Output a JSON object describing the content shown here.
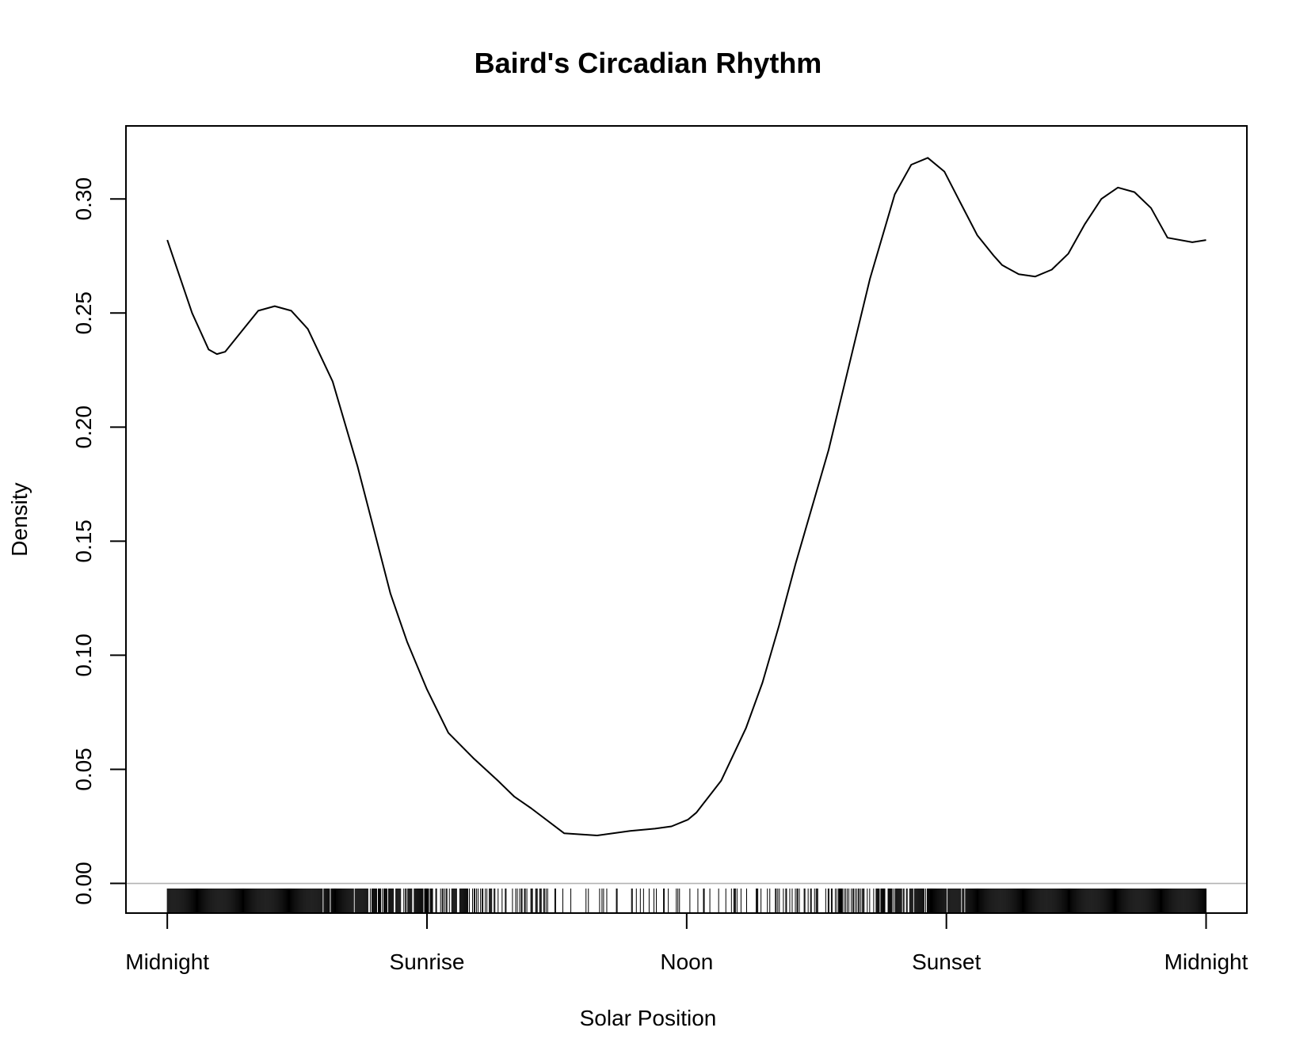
{
  "chart_data": {
    "type": "line",
    "title": "Baird's Circadian Rhythm",
    "xlabel": "Solar Position",
    "ylabel": "Density",
    "x_tick_labels": [
      "Midnight",
      "Sunrise",
      "Noon",
      "Sunset",
      "Midnight"
    ],
    "x_ticks": [
      0,
      1.5708,
      3.1416,
      4.7124,
      6.2832
    ],
    "xlim": [
      -0.25,
      6.53
    ],
    "ylim": [
      -0.013,
      0.332
    ],
    "y_ticks": [
      0.0,
      0.05,
      0.1,
      0.15,
      0.2,
      0.25,
      0.3
    ],
    "y_tick_labels": [
      "0.00",
      "0.05",
      "0.10",
      "0.15",
      "0.20",
      "0.25",
      "0.30"
    ],
    "reference_line": {
      "y": 0,
      "color": "#b3b3b3"
    },
    "grid": false,
    "series": [
      {
        "x": [
          0,
          0.15,
          0.25,
          0.3,
          0.35,
          0.45,
          0.55,
          0.65,
          0.75,
          0.85,
          1.0,
          1.15,
          1.25,
          1.35,
          1.45,
          1.5708,
          1.7,
          1.85,
          2.0,
          2.1,
          2.2,
          2.4,
          2.6,
          2.8,
          2.95,
          3.05,
          3.15,
          3.2,
          3.35,
          3.5,
          3.6,
          3.7,
          3.8,
          3.9,
          4.0,
          4.1,
          4.25,
          4.4,
          4.5,
          4.6,
          4.7,
          4.8,
          4.9,
          5.0,
          5.05,
          5.15,
          5.25,
          5.35,
          5.45,
          5.55,
          5.65,
          5.75,
          5.85,
          5.95,
          6.05,
          6.2,
          6.2832
        ],
        "y": [
          0.282,
          0.25,
          0.234,
          0.232,
          0.233,
          0.242,
          0.251,
          0.253,
          0.251,
          0.243,
          0.22,
          0.183,
          0.155,
          0.127,
          0.106,
          0.085,
          0.066,
          0.055,
          0.045,
          0.038,
          0.033,
          0.022,
          0.021,
          0.023,
          0.024,
          0.025,
          0.028,
          0.031,
          0.045,
          0.068,
          0.088,
          0.113,
          0.14,
          0.165,
          0.19,
          0.22,
          0.265,
          0.302,
          0.315,
          0.318,
          0.312,
          0.298,
          0.284,
          0.275,
          0.271,
          0.267,
          0.266,
          0.269,
          0.276,
          0.289,
          0.3,
          0.305,
          0.303,
          0.296,
          0.283,
          0.281,
          0.282
        ]
      }
    ],
    "rug_density": [
      [
        0,
        1.0
      ],
      [
        0.3,
        1.0
      ],
      [
        0.9,
        1.0
      ],
      [
        1.2,
        0.85
      ],
      [
        1.5,
        0.65
      ],
      [
        1.9,
        0.45
      ],
      [
        2.2,
        0.3
      ],
      [
        2.5,
        0.15
      ],
      [
        2.9,
        0.12
      ],
      [
        3.2,
        0.15
      ],
      [
        3.5,
        0.2
      ],
      [
        3.8,
        0.35
      ],
      [
        4.1,
        0.55
      ],
      [
        4.4,
        0.8
      ],
      [
        4.7,
        0.95
      ],
      [
        5.0,
        1.0
      ],
      [
        6.2832,
        1.0
      ]
    ]
  }
}
